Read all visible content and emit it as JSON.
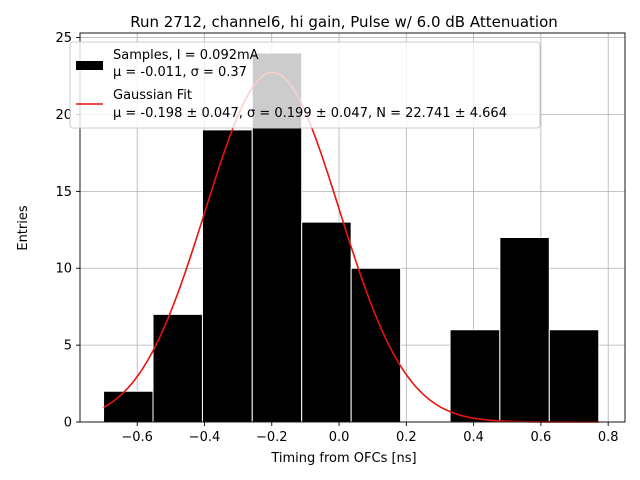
{
  "chart_data": {
    "type": "bar",
    "title": "Run 2712, channel6, hi gain, Pulse w/ 6.0 dB Attenuation",
    "xlabel": "Timing from OFCs [ns]",
    "ylabel": "Entries",
    "xlim": [
      -0.77,
      0.85
    ],
    "ylim": [
      0,
      25.3
    ],
    "grid": true,
    "legend_position": "top-left",
    "x_ticks": [
      -0.6,
      -0.4,
      -0.2,
      0.0,
      0.2,
      0.4,
      0.6,
      0.8
    ],
    "x_tick_labels": [
      "−0.6",
      "−0.4",
      "−0.2",
      "0.0",
      "0.2",
      "0.4",
      "0.6",
      "0.8"
    ],
    "y_ticks": [
      0,
      5,
      10,
      15,
      20,
      25
    ],
    "y_tick_labels": [
      "0",
      "5",
      "10",
      "15",
      "20",
      "25"
    ],
    "histogram": {
      "bin_edges": [
        -0.7,
        -0.553,
        -0.406,
        -0.258,
        -0.111,
        0.036,
        0.183,
        0.33,
        0.478,
        0.625,
        0.772
      ],
      "counts": [
        2,
        7,
        19,
        24,
        13,
        10,
        0,
        6,
        12,
        6
      ],
      "color": "#000000"
    },
    "fit": {
      "mu": -0.198,
      "sigma": 0.199,
      "N": 22.741,
      "x_range": [
        -0.7,
        0.772
      ],
      "color": "#e8140f"
    },
    "legend": {
      "samples_line1": "Samples, I = 0.092mA",
      "samples_line2": "μ = -0.011, σ = 0.37",
      "fit_line1": "Gaussian Fit",
      "fit_line2": "μ = -0.198 ± 0.047, σ = 0.199 ± 0.047, N = 22.741 ± 4.664"
    }
  }
}
